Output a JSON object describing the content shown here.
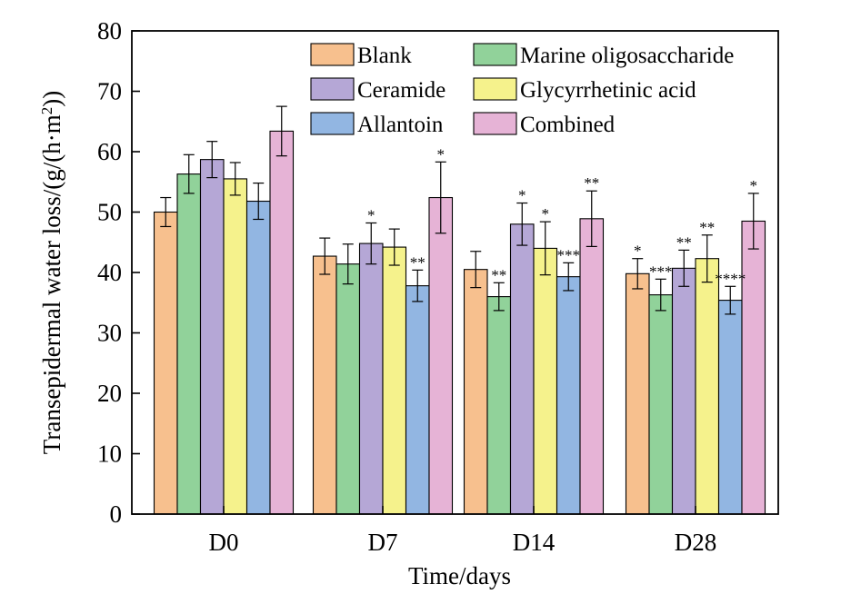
{
  "chart_data": {
    "type": "bar",
    "xlabel": "Time/days",
    "ylabel_main": "Transepidermal water loss/(g/(h·m",
    "ylabel_sup": "2",
    "ylabel_end": "))",
    "ylim": [
      0,
      80
    ],
    "yticks": [
      0,
      10,
      20,
      30,
      40,
      50,
      60,
      70,
      80
    ],
    "categories": [
      "D0",
      "D7",
      "D14",
      "D28"
    ],
    "legend_placement": "top-right",
    "series": [
      {
        "name": "Blank",
        "color": "#F7C08E",
        "values": [
          50.0,
          42.7,
          40.5,
          39.8
        ],
        "errors": [
          2.4,
          3.0,
          3.0,
          2.5
        ],
        "sig": [
          "",
          "",
          "",
          "*"
        ]
      },
      {
        "name": "Marine oligosaccharide",
        "color": "#91D29A",
        "values": [
          56.3,
          41.4,
          36.0,
          36.3
        ],
        "errors": [
          3.2,
          3.3,
          2.3,
          2.6
        ],
        "sig": [
          "",
          "",
          "**",
          "***"
        ]
      },
      {
        "name": "Ceramide",
        "color": "#B5A7D6",
        "values": [
          58.7,
          44.8,
          48.0,
          40.7
        ],
        "errors": [
          3.0,
          3.4,
          3.5,
          3.0
        ],
        "sig": [
          "",
          "*",
          "*",
          "**"
        ]
      },
      {
        "name": "Glycyrrhetinic acid",
        "color": "#F5F28C",
        "values": [
          55.5,
          44.2,
          44.0,
          42.3
        ],
        "errors": [
          2.7,
          3.0,
          4.4,
          3.9
        ],
        "sig": [
          "",
          "",
          "*",
          "**"
        ]
      },
      {
        "name": "Allantoin",
        "color": "#92B6E2",
        "values": [
          51.8,
          37.8,
          39.3,
          35.4
        ],
        "errors": [
          3.0,
          2.6,
          2.3,
          2.3
        ],
        "sig": [
          "",
          "**",
          "***",
          "****"
        ]
      },
      {
        "name": "Combined",
        "color": "#E6B3D6",
        "values": [
          63.4,
          52.4,
          48.9,
          48.5
        ],
        "errors": [
          4.1,
          5.9,
          4.6,
          4.6
        ],
        "sig": [
          "",
          "*",
          "**",
          "*"
        ]
      }
    ],
    "legend": [
      {
        "label": "Blank",
        "color": "#F7C08E"
      },
      {
        "label": "Marine oligosaccharide",
        "color": "#91D29A"
      },
      {
        "label": "Ceramide",
        "color": "#B5A7D6"
      },
      {
        "label": "Glycyrrhetinic acid",
        "color": "#F5F28C"
      },
      {
        "label": "Allantoin",
        "color": "#92B6E2"
      },
      {
        "label": "Combined",
        "color": "#E6B3D6"
      }
    ]
  }
}
